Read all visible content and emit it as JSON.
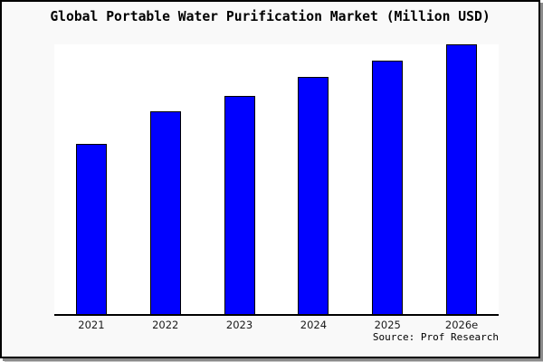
{
  "page": {
    "title": "Global Portable Water Purification Market (Million USD)",
    "source": "Source: Prof Research"
  },
  "chart_data": {
    "type": "bar",
    "title": "Global Portable Water Purification Market (Million USD)",
    "categories": [
      "2021",
      "2022",
      "2023",
      "2024",
      "2025",
      "2026e"
    ],
    "values": [
      63,
      75,
      81,
      88,
      94,
      100
    ],
    "value_scale_note": "no y-axis ticks shown; values estimated relative to tallest bar (2026e = 100)",
    "xlabel": "",
    "ylabel": "",
    "ylim": [
      0,
      100
    ],
    "grid": false,
    "legend": false,
    "bar_color": "#0000ff",
    "bar_border_color": "#000000",
    "annotation": "Source: Prof Research"
  },
  "colors": {
    "page_bg": "#f9f9f9",
    "plot_bg": "#ffffff",
    "frame_border": "#000000",
    "shadow": "#8a8a8a",
    "bar": "#0000ff",
    "text": "#000000"
  }
}
